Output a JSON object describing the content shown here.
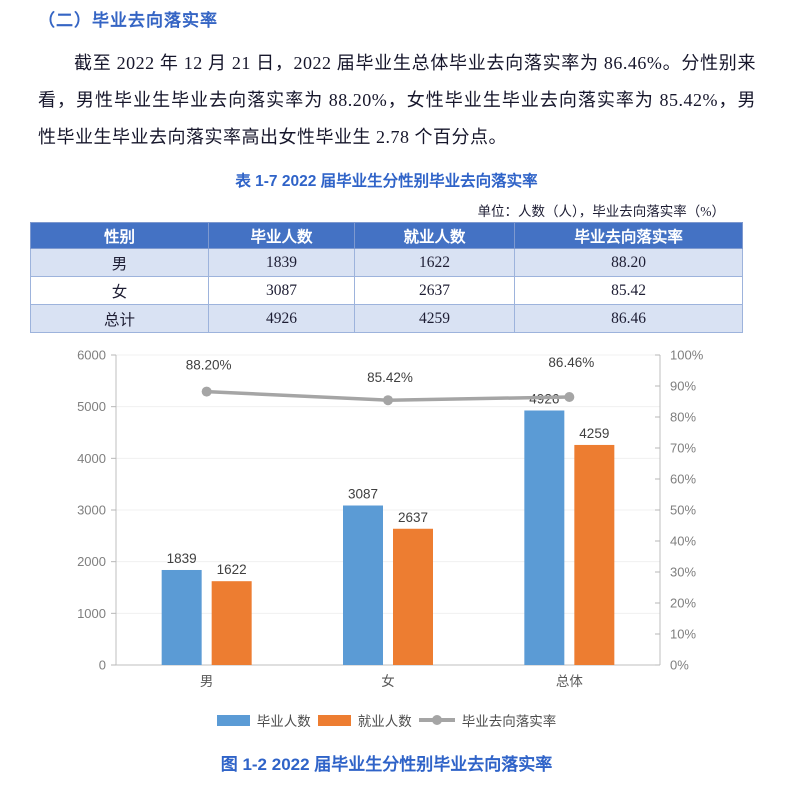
{
  "section": {
    "heading": "（二）毕业去向落实率",
    "paragraph": "截至 2022 年 12 月 21 日，2022 届毕业生总体毕业去向落实率为 86.46%。分性别来看，男性毕业生毕业去向落实率为 88.20%，女性毕业生毕业去向落实率为 85.42%，男性毕业生毕业去向落实率高出女性毕业生 2.78 个百分点。"
  },
  "table": {
    "title": "表 1-7 2022 届毕业生分性别毕业去向落实率",
    "unit_note": "单位：人数（人），毕业去向落实率（%）",
    "headers": [
      "性别",
      "毕业人数",
      "就业人数",
      "毕业去向落实率"
    ],
    "rows": [
      [
        "男",
        "1839",
        "1622",
        "88.20"
      ],
      [
        "女",
        "3087",
        "2637",
        "85.42"
      ],
      [
        "总计",
        "4926",
        "4259",
        "86.46"
      ]
    ]
  },
  "chart_data": {
    "type": "bar",
    "subtype": "grouped-bar-with-line",
    "categories": [
      "男",
      "女",
      "总体"
    ],
    "series": [
      {
        "name": "毕业人数",
        "render": "bar",
        "color": "#5b9bd5",
        "values": [
          1839,
          3087,
          4926
        ]
      },
      {
        "name": "就业人数",
        "render": "bar",
        "color": "#ed7d31",
        "values": [
          1622,
          2637,
          4259
        ]
      },
      {
        "name": "毕业去向落实率",
        "render": "line",
        "color": "#a5a5a5",
        "axis": "right",
        "values": [
          88.2,
          85.42,
          86.46
        ],
        "point_labels": [
          "88.20%",
          "85.42%",
          "86.46%"
        ]
      }
    ],
    "left_axis": {
      "min": 0,
      "max": 6000,
      "step": 1000,
      "tick_labels": [
        "0",
        "1000",
        "2000",
        "3000",
        "4000",
        "5000",
        "6000"
      ]
    },
    "right_axis": {
      "min": 0,
      "max": 100,
      "step": 10,
      "tick_labels": [
        "0%",
        "10%",
        "20%",
        "30%",
        "40%",
        "50%",
        "60%",
        "70%",
        "80%",
        "90%",
        "100%"
      ]
    },
    "grid": true,
    "legend_position": "bottom",
    "bar_label_color": "#404040",
    "axis_label_color": "#7f7f7f",
    "category_label_color": "#595959"
  },
  "figure": {
    "caption": "图 1-2 2022 届毕业生分性别毕业去向落实率"
  },
  "colors": {
    "heading_blue": "#3565c4",
    "title_blue": "#2f63c8",
    "table_header_bg": "#4472c4",
    "table_alt_row_bg": "#d9e2f3",
    "bar_blue": "#5b9bd5",
    "bar_orange": "#ed7d31",
    "line_gray": "#a5a5a5"
  }
}
